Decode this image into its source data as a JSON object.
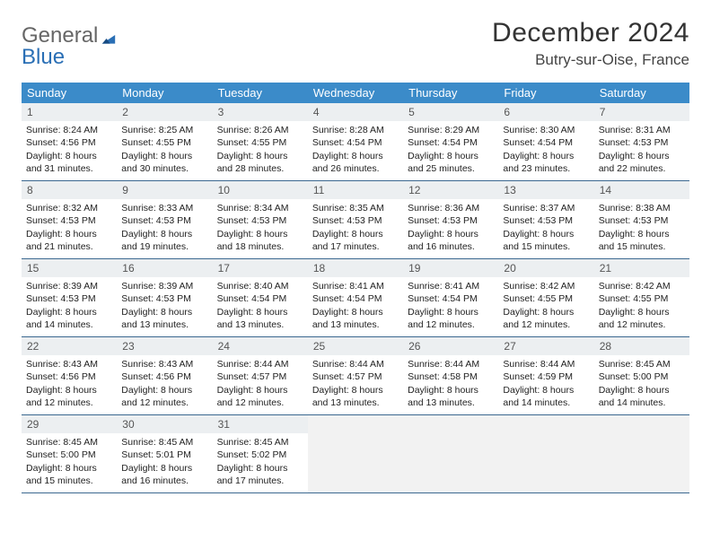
{
  "logo": {
    "part1": "General",
    "part2": "Blue"
  },
  "title": "December 2024",
  "location": "Butry-sur-Oise, France",
  "colors": {
    "header_bg": "#3b8bc9",
    "header_text": "#ffffff",
    "daynum_bg": "#eceff1",
    "week_border": "#3b6890",
    "logo_accent": "#2a6fb5"
  },
  "day_names": [
    "Sunday",
    "Monday",
    "Tuesday",
    "Wednesday",
    "Thursday",
    "Friday",
    "Saturday"
  ],
  "weeks": [
    [
      {
        "n": "1",
        "sr": "8:24 AM",
        "ss": "4:56 PM",
        "dl": "8 hours and 31 minutes."
      },
      {
        "n": "2",
        "sr": "8:25 AM",
        "ss": "4:55 PM",
        "dl": "8 hours and 30 minutes."
      },
      {
        "n": "3",
        "sr": "8:26 AM",
        "ss": "4:55 PM",
        "dl": "8 hours and 28 minutes."
      },
      {
        "n": "4",
        "sr": "8:28 AM",
        "ss": "4:54 PM",
        "dl": "8 hours and 26 minutes."
      },
      {
        "n": "5",
        "sr": "8:29 AM",
        "ss": "4:54 PM",
        "dl": "8 hours and 25 minutes."
      },
      {
        "n": "6",
        "sr": "8:30 AM",
        "ss": "4:54 PM",
        "dl": "8 hours and 23 minutes."
      },
      {
        "n": "7",
        "sr": "8:31 AM",
        "ss": "4:53 PM",
        "dl": "8 hours and 22 minutes."
      }
    ],
    [
      {
        "n": "8",
        "sr": "8:32 AM",
        "ss": "4:53 PM",
        "dl": "8 hours and 21 minutes."
      },
      {
        "n": "9",
        "sr": "8:33 AM",
        "ss": "4:53 PM",
        "dl": "8 hours and 19 minutes."
      },
      {
        "n": "10",
        "sr": "8:34 AM",
        "ss": "4:53 PM",
        "dl": "8 hours and 18 minutes."
      },
      {
        "n": "11",
        "sr": "8:35 AM",
        "ss": "4:53 PM",
        "dl": "8 hours and 17 minutes."
      },
      {
        "n": "12",
        "sr": "8:36 AM",
        "ss": "4:53 PM",
        "dl": "8 hours and 16 minutes."
      },
      {
        "n": "13",
        "sr": "8:37 AM",
        "ss": "4:53 PM",
        "dl": "8 hours and 15 minutes."
      },
      {
        "n": "14",
        "sr": "8:38 AM",
        "ss": "4:53 PM",
        "dl": "8 hours and 15 minutes."
      }
    ],
    [
      {
        "n": "15",
        "sr": "8:39 AM",
        "ss": "4:53 PM",
        "dl": "8 hours and 14 minutes."
      },
      {
        "n": "16",
        "sr": "8:39 AM",
        "ss": "4:53 PM",
        "dl": "8 hours and 13 minutes."
      },
      {
        "n": "17",
        "sr": "8:40 AM",
        "ss": "4:54 PM",
        "dl": "8 hours and 13 minutes."
      },
      {
        "n": "18",
        "sr": "8:41 AM",
        "ss": "4:54 PM",
        "dl": "8 hours and 13 minutes."
      },
      {
        "n": "19",
        "sr": "8:41 AM",
        "ss": "4:54 PM",
        "dl": "8 hours and 12 minutes."
      },
      {
        "n": "20",
        "sr": "8:42 AM",
        "ss": "4:55 PM",
        "dl": "8 hours and 12 minutes."
      },
      {
        "n": "21",
        "sr": "8:42 AM",
        "ss": "4:55 PM",
        "dl": "8 hours and 12 minutes."
      }
    ],
    [
      {
        "n": "22",
        "sr": "8:43 AM",
        "ss": "4:56 PM",
        "dl": "8 hours and 12 minutes."
      },
      {
        "n": "23",
        "sr": "8:43 AM",
        "ss": "4:56 PM",
        "dl": "8 hours and 12 minutes."
      },
      {
        "n": "24",
        "sr": "8:44 AM",
        "ss": "4:57 PM",
        "dl": "8 hours and 12 minutes."
      },
      {
        "n": "25",
        "sr": "8:44 AM",
        "ss": "4:57 PM",
        "dl": "8 hours and 13 minutes."
      },
      {
        "n": "26",
        "sr": "8:44 AM",
        "ss": "4:58 PM",
        "dl": "8 hours and 13 minutes."
      },
      {
        "n": "27",
        "sr": "8:44 AM",
        "ss": "4:59 PM",
        "dl": "8 hours and 14 minutes."
      },
      {
        "n": "28",
        "sr": "8:45 AM",
        "ss": "5:00 PM",
        "dl": "8 hours and 14 minutes."
      }
    ],
    [
      {
        "n": "29",
        "sr": "8:45 AM",
        "ss": "5:00 PM",
        "dl": "8 hours and 15 minutes."
      },
      {
        "n": "30",
        "sr": "8:45 AM",
        "ss": "5:01 PM",
        "dl": "8 hours and 16 minutes."
      },
      {
        "n": "31",
        "sr": "8:45 AM",
        "ss": "5:02 PM",
        "dl": "8 hours and 17 minutes."
      },
      null,
      null,
      null,
      null
    ]
  ],
  "labels": {
    "sunrise": "Sunrise:",
    "sunset": "Sunset:",
    "daylight": "Daylight:"
  }
}
